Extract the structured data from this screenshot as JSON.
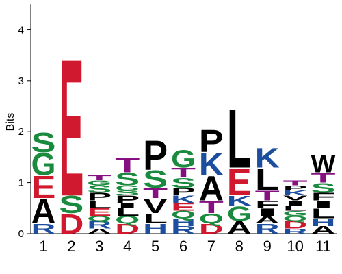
{
  "chart_data": {
    "type": "sequence_logo",
    "title": "",
    "xlabel": "",
    "ylabel": "Bits",
    "ylim": [
      0,
      4.5
    ],
    "yticks": [
      "0",
      "1",
      "2",
      "3",
      "4"
    ],
    "positions": [
      "1",
      "2",
      "3",
      "4",
      "5",
      "6",
      "7",
      "8",
      "9",
      "10",
      "11"
    ],
    "color_scheme": {
      "acidic": "#d0182f",
      "basic": "#1c4ea0",
      "polar": "#1a8a3e",
      "hydrophobic": "#000000",
      "small_polar": "#86107f"
    },
    "residue_classes": {
      "D": "acidic",
      "E": "acidic",
      "K": "basic",
      "R": "basic",
      "H": "basic",
      "S": "polar",
      "G": "polar",
      "Q": "polar",
      "N": "polar",
      "T": "small_polar",
      "Y": "polar",
      "C": "polar",
      "A": "hydrophobic",
      "P": "hydrophobic",
      "L": "hydrophobic",
      "V": "hydrophobic",
      "I": "hydrophobic",
      "F": "hydrophobic",
      "M": "hydrophobic",
      "W": "hydrophobic"
    },
    "columns": [
      {
        "position": "1",
        "stack": [
          [
            "R",
            0.2
          ],
          [
            "A",
            0.5
          ],
          [
            "E",
            0.45
          ],
          [
            "G",
            0.45
          ],
          [
            "S",
            0.4
          ]
        ]
      },
      {
        "position": "2",
        "stack": [
          [
            "D",
            0.4
          ],
          [
            "S",
            0.35
          ],
          [
            "E",
            2.8
          ]
        ]
      },
      {
        "position": "3",
        "stack": [
          [
            "A",
            0.1
          ],
          [
            "R",
            0.15
          ],
          [
            "Q",
            0.1
          ],
          [
            "E",
            0.15
          ],
          [
            "L",
            0.15
          ],
          [
            "P",
            0.15
          ],
          [
            "S",
            0.15
          ],
          [
            "G",
            0.1
          ],
          [
            "T",
            0.1
          ]
        ]
      },
      {
        "position": "4",
        "stack": [
          [
            "D",
            0.2
          ],
          [
            "Q",
            0.15
          ],
          [
            "L",
            0.15
          ],
          [
            "I",
            0.1
          ],
          [
            "P",
            0.15
          ],
          [
            "S",
            0.1
          ],
          [
            "G",
            0.1
          ],
          [
            "S",
            0.25
          ],
          [
            "T",
            0.3
          ]
        ]
      },
      {
        "position": "5",
        "stack": [
          [
            "H",
            0.2
          ],
          [
            "L",
            0.2
          ],
          [
            "V",
            0.3
          ],
          [
            "T",
            0.2
          ],
          [
            "S",
            0.35
          ],
          [
            "P",
            0.6
          ]
        ]
      },
      {
        "position": "6",
        "stack": [
          [
            "R",
            0.15
          ],
          [
            "H",
            0.15
          ],
          [
            "Q",
            0.15
          ],
          [
            "E",
            0.15
          ],
          [
            "K",
            0.15
          ],
          [
            "P",
            0.15
          ],
          [
            "S",
            0.2
          ],
          [
            "T",
            0.2
          ],
          [
            "G",
            0.35
          ]
        ]
      },
      {
        "position": "7",
        "stack": [
          [
            "D",
            0.2
          ],
          [
            "Q",
            0.2
          ],
          [
            "T",
            0.25
          ],
          [
            "A",
            0.5
          ],
          [
            "K",
            0.45
          ],
          [
            "P",
            0.45
          ]
        ]
      },
      {
        "position": "8",
        "stack": [
          [
            "A",
            0.25
          ],
          [
            "G",
            0.3
          ],
          [
            "K",
            0.2
          ],
          [
            "E",
            0.55
          ],
          [
            "L",
            1.2
          ]
        ]
      },
      {
        "position": "9",
        "stack": [
          [
            "R",
            0.2
          ],
          [
            "A",
            0.15
          ],
          [
            "I",
            0.15
          ],
          [
            "F",
            0.15
          ],
          [
            "T",
            0.2
          ],
          [
            "L",
            0.45
          ],
          [
            "K",
            0.4
          ]
        ]
      },
      {
        "position": "10",
        "stack": [
          [
            "R",
            0.1
          ],
          [
            "D",
            0.15
          ],
          [
            "Q",
            0.1
          ],
          [
            "G",
            0.1
          ],
          [
            "L",
            0.1
          ],
          [
            "I",
            0.1
          ],
          [
            "V",
            0.1
          ],
          [
            "K",
            0.1
          ],
          [
            "P",
            0.1
          ],
          [
            "T",
            0.1
          ]
        ]
      },
      {
        "position": "11",
        "stack": [
          [
            "A",
            0.15
          ],
          [
            "H",
            0.15
          ],
          [
            "L",
            0.2
          ],
          [
            "I",
            0.15
          ],
          [
            "F",
            0.15
          ],
          [
            "S",
            0.2
          ],
          [
            "T",
            0.2
          ],
          [
            "W",
            0.35
          ]
        ]
      }
    ]
  }
}
